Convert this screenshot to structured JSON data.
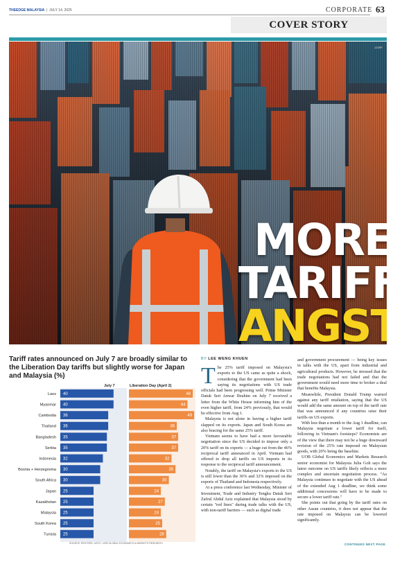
{
  "header": {
    "masthead_brand": "THEEDGE MALAYSIA",
    "masthead_date": "JULY 14, 2025",
    "section": "CORPORATE",
    "page_number": "63",
    "cover_label": "COVER STORY"
  },
  "hero": {
    "photo_credit": "123RF",
    "headline_line1": "MORE",
    "headline_line2": "TARIFF",
    "headline_line3": "ANGST"
  },
  "chart": {
    "title": "Tariff rates announced on July 7 are broadly similar to the Liberation Day tariffs but slightly worse for Japan and Malaysia (%)",
    "legend_july": "July 7",
    "legend_lib": "Liberation Day (April 2)",
    "source": "SOURCE: REUTERS, USITC, UOB GLOBAL ECONOMICS & MARKETS RESEARCH"
  },
  "chart_data": {
    "type": "bar",
    "categories": [
      "Laos",
      "Myanmar",
      "Cambodia",
      "Thailand",
      "Bangladesh",
      "Serbia",
      "Indonesia",
      "Bosnia + Herzegovina",
      "South Africa",
      "Japan",
      "Kazakhstan",
      "Malaysia",
      "South Korea",
      "Tunisia"
    ],
    "series": [
      {
        "name": "July 7",
        "values": [
          40,
          40,
          36,
          36,
          35,
          35,
          32,
          30,
          30,
          25,
          25,
          25,
          25,
          25
        ]
      },
      {
        "name": "Liberation Day (April 2)",
        "values": [
          48,
          44,
          49,
          36,
          37,
          37,
          32,
          35,
          30,
          24,
          27,
          24,
          25,
          28
        ]
      }
    ],
    "colors": {
      "july": "#2757a8",
      "liberation": "#ef8c42"
    },
    "xlim": [
      0,
      50
    ]
  },
  "article": {
    "byline_prefix": "BY",
    "author": "LEE WENG KHUEN",
    "dropcap": "T",
    "col1": [
      "he 25% tariff imposed on Malaysia's exports to the US came as quite a shock, considering that the government had been saying its negotiations with US trade officials had been progressing well. Prime Minister Datuk Seri Anwar Ibrahim on July 7 received a letter from the White House informing him of the even higher tariff, from 24% previously, that would be effective from Aug 1.",
      "Malaysia is not alone in having a higher tariff slapped on its exports. Japan and South Korea are also bracing for the same 25% tariff.",
      "Vietnam seems to have had a more favourable negotiation since the US decided to impose only a 20% tariff on its exports — a huge cut from the 46% reciprocal tariff announced in April. Vietnam had offered to drop all tariffs on US imports in its response to the reciprocal tariff announcement.",
      "Notably, the tariff on Malaysia's exports to the US is still lower than the 36% and 32% imposed on the exports of Thailand and Indonesia respectively.",
      "At a press conference last Wednesday, Minister of Investment, Trade and Industry Tengku Datuk Seri Zafrul Abdul Aziz explained that Malaysia stood by certain \"red lines\" during trade talks with the US, with non-tariff barriers — such as digital trade"
    ],
    "col2": [
      "and government procurement — being key issues in talks with the US, apart from industrial and agricultural products. However, he stressed that the trade negotiations had not failed and that the government would need more time to broker a deal that benefits Malaysia.",
      "Meanwhile, President Donald Trump warned against any tariff retaliation, saying that the US would add the same amount on top of the tariff rate that was announced if any countries raise their tariffs on US exports.",
      "With less than a month to the Aug 1 deadline, can Malaysia negotiate a lower tariff for itself, following in Vietnam's footsteps? Economists are of the view that there may not be a huge downward revision of the 25% rate imposed on Malaysian goods, with 20% being the baseline.",
      "UOB Global Economics and Markets Research senior economist for Malaysia Julia Goh says the latest outcome on US tariffs likely reflects a more complex and uncertain negotiation process. \"As Malaysia continues to negotiate with the US ahead of the extended Aug 1 deadline, we think some additional concessions will have to be made to secure a lower tariff rate.\"",
      "She points out that going by the tariff rates on other Asean countries, it does not appear that the rate imposed on Malaysia can be lowered significantly."
    ],
    "continues": "CONTINUES NEXT PAGE"
  }
}
